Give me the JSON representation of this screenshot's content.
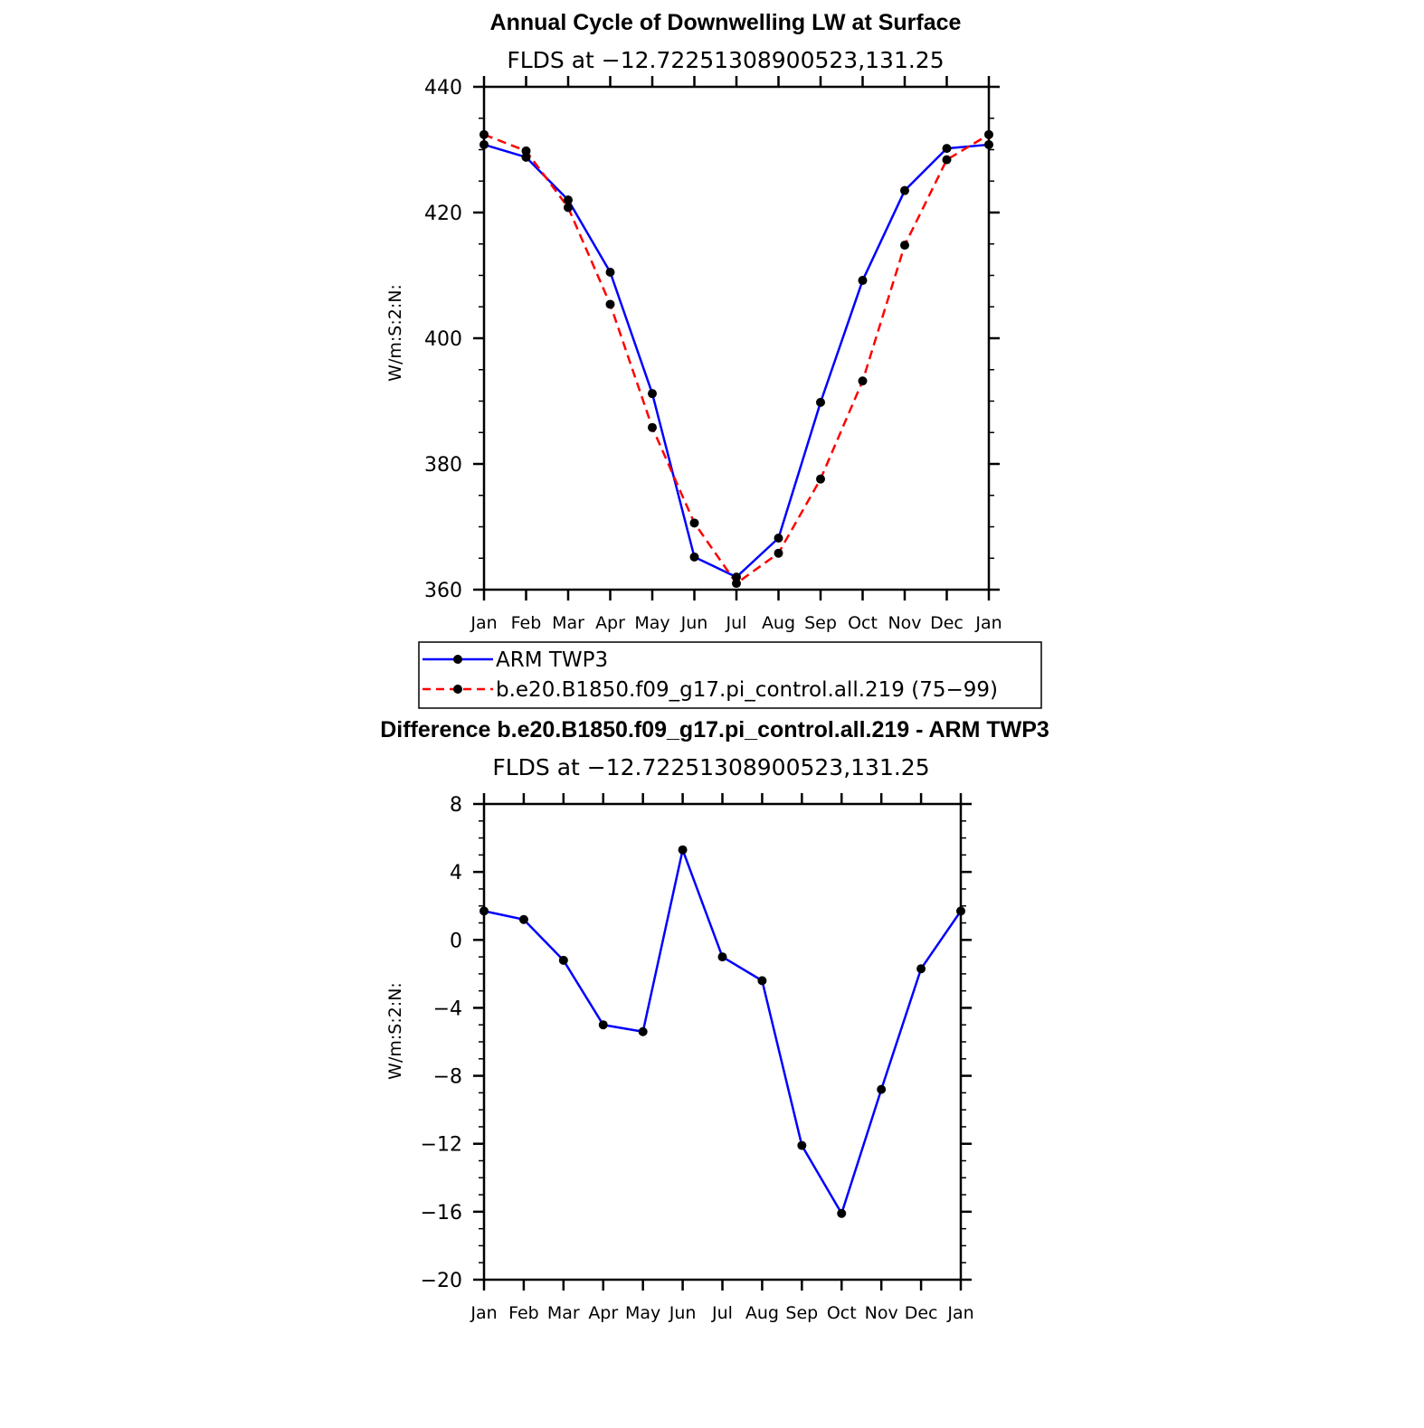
{
  "chart_data": [
    {
      "type": "line",
      "title": "Annual Cycle of Downwelling LW at Surface",
      "subtitle": "FLDS at −12.72251308900523,131.25",
      "ylabel": "W/m:S:2:N:",
      "xlabel": "",
      "ylim": [
        360,
        440
      ],
      "yticks": [
        "360",
        "380",
        "400",
        "420",
        "440"
      ],
      "categories": [
        "Jan",
        "Feb",
        "Mar",
        "Apr",
        "May",
        "Jun",
        "Jul",
        "Aug",
        "Sep",
        "Oct",
        "Nov",
        "Dec",
        "Jan"
      ],
      "grid": false,
      "legend_placement": "below",
      "series": [
        {
          "name": "ARM TWP3",
          "color": "#0000ff",
          "style": "solid",
          "values": [
            430.8,
            428.8,
            422.0,
            410.5,
            391.2,
            365.2,
            362.0,
            368.2,
            389.8,
            409.2,
            423.5,
            430.2,
            430.8
          ]
        },
        {
          "name": "b.e20.B1850.f09_g17.pi_control.all.219 (75−99)",
          "color": "#ff0000",
          "style": "dashed",
          "values": [
            432.4,
            429.8,
            420.8,
            405.4,
            385.8,
            370.6,
            361.0,
            365.8,
            377.6,
            393.2,
            414.8,
            428.4,
            432.4
          ]
        }
      ]
    },
    {
      "type": "line",
      "title": "Difference b.e20.B1850.f09_g17.pi_control.all.219 - ARM TWP3",
      "subtitle": "FLDS at −12.72251308900523,131.25",
      "ylabel": "W/m:S:2:N:",
      "xlabel": "",
      "ylim": [
        -20,
        8
      ],
      "yticks": [
        "−20",
        "−16",
        "−12",
        "−8",
        "−4",
        "0",
        "4",
        "8"
      ],
      "categories": [
        "Jan",
        "Feb",
        "Mar",
        "Apr",
        "May",
        "Jun",
        "Jul",
        "Aug",
        "Sep",
        "Oct",
        "Nov",
        "Dec",
        "Jan"
      ],
      "grid": false,
      "series": [
        {
          "color": "#0000ff",
          "style": "solid",
          "values": [
            1.7,
            1.2,
            -1.2,
            -5.0,
            -5.4,
            5.3,
            -1.0,
            -2.4,
            -12.1,
            -16.1,
            -8.8,
            -1.7,
            1.7
          ]
        }
      ]
    }
  ]
}
